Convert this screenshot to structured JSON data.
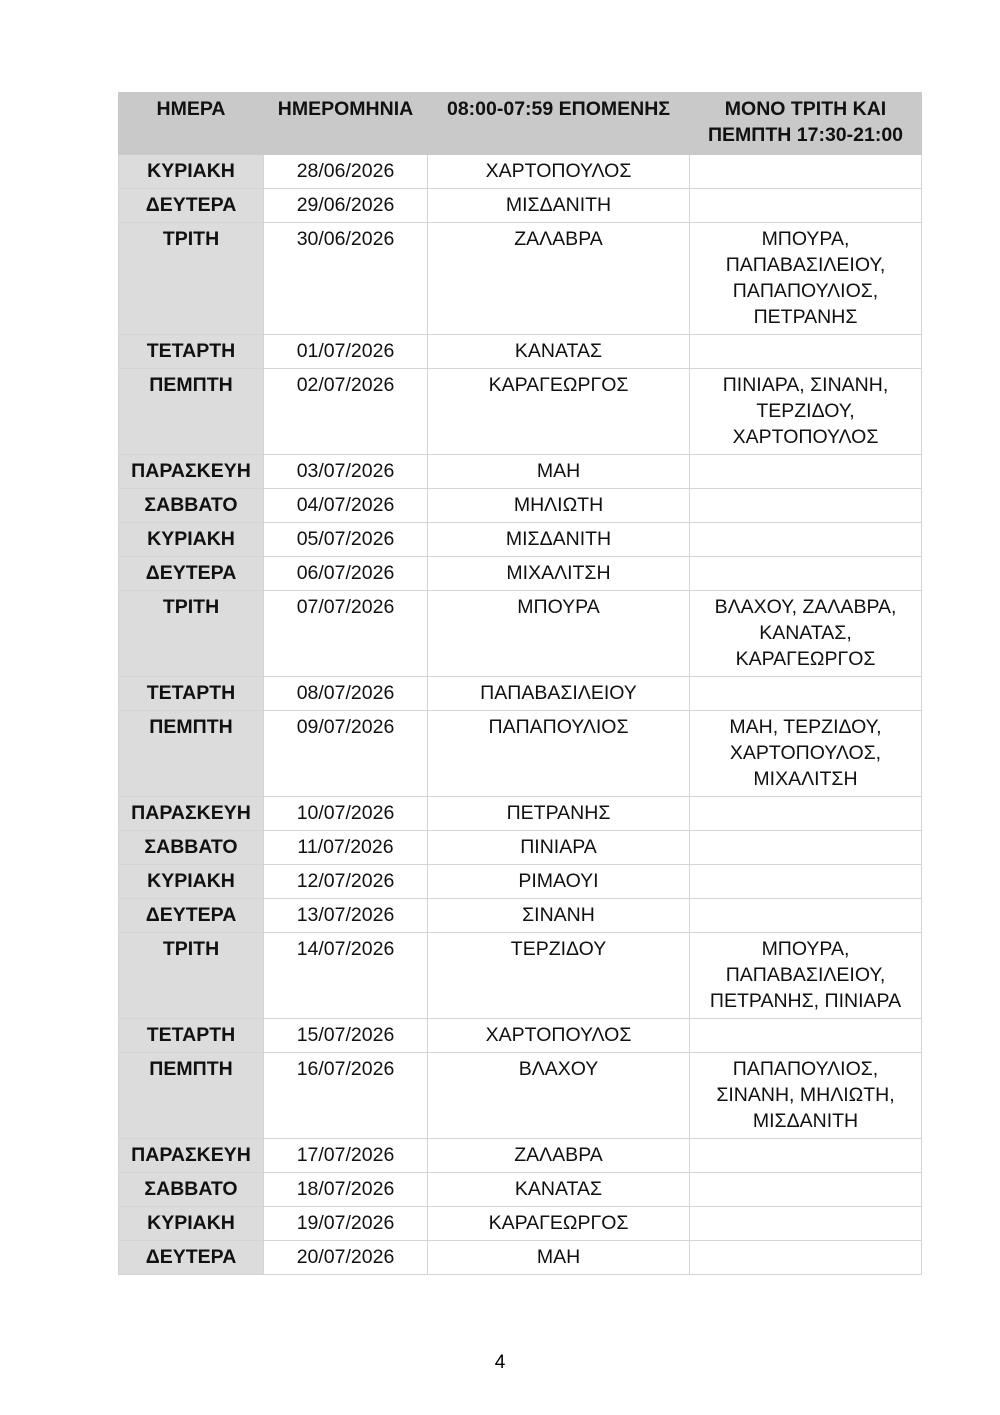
{
  "headers": [
    "ΗΜΕΡΑ",
    "ΗΜΕΡΟΜΗΝΙΑ",
    "08:00-07:59 ΕΠΟΜΕΝΗΣ",
    "ΜΟΝΟ ΤΡΙΤΗ ΚΑΙ ΠΕΜΠΤΗ 17:30-21:00"
  ],
  "colors": {
    "header_bg": "#c9c9c9",
    "day_column_bg": "#dcdcdc"
  },
  "rows": [
    [
      "ΚΥΡΙΑΚΗ",
      "28/06/2026",
      "ΧΑΡΤΟΠΟΥΛΟΣ",
      ""
    ],
    [
      "ΔΕΥΤΕΡΑ",
      "29/06/2026",
      "ΜΙΣΔΑΝΙΤΗ",
      ""
    ],
    [
      "ΤΡΙΤΗ",
      "30/06/2026",
      "ΖΑΛΑΒΡΑ",
      "ΜΠΟΥΡΑ, ΠΑΠΑΒΑΣΙΛΕΙΟΥ, ΠΑΠΑΠΟΥΛΙΟΣ, ΠΕΤΡΑΝΗΣ"
    ],
    [
      "ΤΕΤΑΡΤΗ",
      "01/07/2026",
      "ΚΑΝΑΤΑΣ",
      ""
    ],
    [
      "ΠΕΜΠΤΗ",
      "02/07/2026",
      "ΚΑΡΑΓΕΩΡΓΟΣ",
      "ΠΙΝΙΑΡΑ, ΣΙΝΑΝΗ, ΤΕΡΖΙΔΟΥ, ΧΑΡΤΟΠΟΥΛΟΣ"
    ],
    [
      "ΠΑΡΑΣΚΕΥΗ",
      "03/07/2026",
      "ΜΑΗ",
      ""
    ],
    [
      "ΣΑΒΒΑΤΟ",
      "04/07/2026",
      "ΜΗΛΙΩΤΗ",
      ""
    ],
    [
      "ΚΥΡΙΑΚΗ",
      "05/07/2026",
      "ΜΙΣΔΑΝΙΤΗ",
      ""
    ],
    [
      "ΔΕΥΤΕΡΑ",
      "06/07/2026",
      "ΜΙΧΑΛΙΤΣΗ",
      ""
    ],
    [
      "ΤΡΙΤΗ",
      "07/07/2026",
      "ΜΠΟΥΡΑ",
      "ΒΛΑΧΟΥ, ΖΑΛΑΒΡΑ, ΚΑΝΑΤΑΣ, ΚΑΡΑΓΕΩΡΓΟΣ"
    ],
    [
      "ΤΕΤΑΡΤΗ",
      "08/07/2026",
      "ΠΑΠΑΒΑΣΙΛΕΙΟΥ",
      ""
    ],
    [
      "ΠΕΜΠΤΗ",
      "09/07/2026",
      "ΠΑΠΑΠΟΥΛΙΟΣ",
      "ΜΑΗ, ΤΕΡΖΙΔΟΥ, ΧΑΡΤΟΠΟΥΛΟΣ, ΜΙΧΑΛΙΤΣΗ"
    ],
    [
      "ΠΑΡΑΣΚΕΥΗ",
      "10/07/2026",
      "ΠΕΤΡΑΝΗΣ",
      ""
    ],
    [
      "ΣΑΒΒΑΤΟ",
      "11/07/2026",
      "ΠΙΝΙΑΡΑ",
      ""
    ],
    [
      "ΚΥΡΙΑΚΗ",
      "12/07/2026",
      "ΡΙΜΑΟΥΙ",
      ""
    ],
    [
      "ΔΕΥΤΕΡΑ",
      "13/07/2026",
      "ΣΙΝΑΝΗ",
      ""
    ],
    [
      "ΤΡΙΤΗ",
      "14/07/2026",
      "ΤΕΡΖΙΔΟΥ",
      "ΜΠΟΥΡΑ, ΠΑΠΑΒΑΣΙΛΕΙΟΥ, ΠΕΤΡΑΝΗΣ, ΠΙΝΙΑΡΑ"
    ],
    [
      "ΤΕΤΑΡΤΗ",
      "15/07/2026",
      "ΧΑΡΤΟΠΟΥΛΟΣ",
      ""
    ],
    [
      "ΠΕΜΠΤΗ",
      "16/07/2026",
      "ΒΛΑΧΟΥ",
      "ΠΑΠΑΠΟΥΛΙΟΣ, ΣΙΝΑΝΗ, ΜΗΛΙΩΤΗ, ΜΙΣΔΑΝΙΤΗ"
    ],
    [
      "ΠΑΡΑΣΚΕΥΗ",
      "17/07/2026",
      "ΖΑΛΑΒΡΑ",
      ""
    ],
    [
      "ΣΑΒΒΑΤΟ",
      "18/07/2026",
      "ΚΑΝΑΤΑΣ",
      ""
    ],
    [
      "ΚΥΡΙΑΚΗ",
      "19/07/2026",
      "ΚΑΡΑΓΕΩΡΓΟΣ",
      ""
    ],
    [
      "ΔΕΥΤΕΡΑ",
      "20/07/2026",
      "ΜΑΗ",
      ""
    ]
  ],
  "page_number": "4"
}
